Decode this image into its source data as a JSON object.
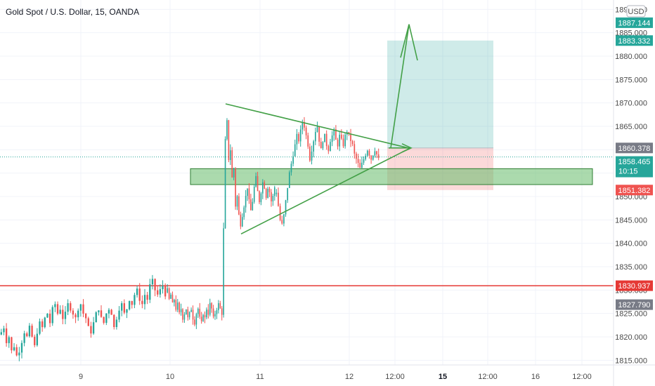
{
  "chart_data": {
    "type": "candlestick",
    "title": "Gold Spot / U.S. Dollar, 15, OANDA",
    "currency_label": "USD",
    "y_axis": {
      "range": [
        1814,
        1892
      ],
      "ticks": [
        "1815.000",
        "1820.000",
        "1825.000",
        "1830.000",
        "1835.000",
        "1840.000",
        "1845.000",
        "1850.000",
        "1855.000",
        "1860.000",
        "1865.000",
        "1870.000",
        "1875.000",
        "1880.000",
        "1885.000",
        "1890.000"
      ]
    },
    "x_axis": {
      "ticks": [
        {
          "label": "9",
          "bold": false
        },
        {
          "label": "10",
          "bold": false
        },
        {
          "label": "11",
          "bold": false
        },
        {
          "label": "12",
          "bold": false
        },
        {
          "label": "12:00",
          "bold": false
        },
        {
          "label": "15",
          "bold": true
        },
        {
          "label": "12:00",
          "bold": false
        },
        {
          "label": "16",
          "bold": false
        },
        {
          "label": "12:00",
          "bold": false
        }
      ]
    },
    "grid": true,
    "colors": {
      "up": "#26a69a",
      "down": "#ef5350",
      "zone": "#4caf50",
      "resistance": "#e53935",
      "arrow": "#43a047"
    },
    "price_badges": [
      {
        "value": "1887.144",
        "color": "#26a69a"
      },
      {
        "value": "1883.332",
        "color": "#26a69a"
      },
      {
        "value": "1860.378",
        "color": "#787b86"
      },
      {
        "value": "1858.465",
        "sub": "10:15",
        "color": "#26a69a"
      },
      {
        "value": "1851.382",
        "color": "#ef5350"
      },
      {
        "value": "1830.937",
        "color": "#e53935"
      },
      {
        "value": "1827.790",
        "color": "#787b86"
      }
    ],
    "annotations": {
      "horizontal_line": 1830.937,
      "support_zone": [
        1853.0,
        1855.5
      ],
      "position": {
        "entry": 1860.378,
        "target": 1883.332,
        "stop": 1851.382
      },
      "triangle_upper": {
        "from": 1869.8,
        "to": 1860.3
      },
      "triangle_lower": {
        "from": 1842.0,
        "to": 1860.3
      }
    },
    "series": [
      {
        "segment": "day-8-9",
        "close_path": [
          1821,
          1822,
          1819,
          1820,
          1817,
          1818,
          1816,
          1817,
          1819,
          1821,
          1820,
          1822,
          1820,
          1818,
          1821,
          1823,
          1822,
          1824,
          1825,
          1823,
          1826,
          1827,
          1825,
          1826,
          1824,
          1825,
          1827,
          1826,
          1825,
          1824,
          1826,
          1827,
          1825,
          1824,
          1822,
          1821,
          1823,
          1825,
          1826,
          1824,
          1823,
          1825,
          1826,
          1825,
          1822,
          1824,
          1826,
          1827,
          1825,
          1826,
          1828,
          1827,
          1829,
          1830,
          1828,
          1827,
          1829,
          1828,
          1831,
          1832,
          1830,
          1829,
          1830,
          1831,
          1829
        ]
      },
      {
        "segment": "day-10",
        "close_path": [
          1830,
          1828,
          1829,
          1827,
          1828,
          1826,
          1827,
          1825,
          1826,
          1824,
          1825,
          1826,
          1824,
          1825,
          1826,
          1824,
          1823,
          1825,
          1826,
          1824,
          1823,
          1825,
          1824,
          1826,
          1825,
          1827,
          1826,
          1824,
          1825,
          1826,
          1827,
          1826,
          1825,
          1843,
          1862,
          1866,
          1858,
          1860,
          1854,
          1856,
          1848,
          1850,
          1846,
          1844,
          1846,
          1848,
          1850,
          1852,
          1849,
          1847,
          1849,
          1852,
          1854,
          1851,
          1849,
          1851,
          1853,
          1852,
          1850,
          1852,
          1851,
          1849,
          1850,
          1852
        ]
      },
      {
        "segment": "day-11-12",
        "close_path": [
          1851,
          1848,
          1845,
          1844,
          1846,
          1849,
          1852,
          1855,
          1857,
          1859,
          1861,
          1863,
          1862,
          1864,
          1866,
          1865,
          1863,
          1861,
          1858,
          1860,
          1862,
          1864,
          1865,
          1862,
          1860,
          1862,
          1863,
          1861,
          1860,
          1862,
          1863,
          1864,
          1862,
          1861,
          1863,
          1862,
          1861,
          1863,
          1864,
          1863,
          1862,
          1861,
          1859,
          1858,
          1857,
          1856,
          1857,
          1858,
          1859,
          1860,
          1859,
          1858,
          1859,
          1860,
          1859,
          1858
        ]
      }
    ]
  }
}
